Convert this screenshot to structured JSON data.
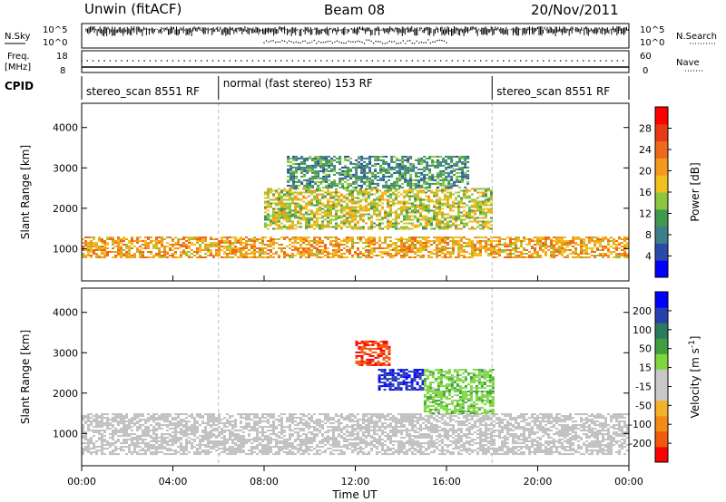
{
  "header": {
    "station": "Unwin (fitACF)",
    "beam": "Beam 08",
    "date": "20/Nov/2011"
  },
  "side_labels": {
    "nsky": "N.Sky",
    "nsearch": "N.Search",
    "freq_line1": "Freq.",
    "freq_line2": "[MHz]",
    "nave": "Nave",
    "cpid": "CPID"
  },
  "noise_panel": {
    "left_ticks": [
      "10^5",
      "10^0"
    ],
    "right_ticks": [
      "10^5",
      "10^0"
    ]
  },
  "freq_panel": {
    "left_ticks": [
      "18",
      "8"
    ],
    "right_ticks": [
      "60",
      "0"
    ]
  },
  "cpid_segments": [
    {
      "label": "stereo_scan 8551 RF",
      "start_h": 0,
      "end_h": 6.0
    },
    {
      "label": "normal (fast stereo) 153 RF",
      "start_h": 6.0,
      "end_h": 18.0
    },
    {
      "label": "stereo_scan 8551 RF",
      "start_h": 18.0,
      "end_h": 24.0
    }
  ],
  "colors": {
    "power_scale": [
      "#0000ff",
      "#2a4aa8",
      "#3c7f8a",
      "#3f9a4d",
      "#8cc63f",
      "#f0c020",
      "#f39a1c",
      "#ee6a1a",
      "#e83a14",
      "#ff0000"
    ],
    "velocity_scale": [
      "#ff0000",
      "#ef5a0d",
      "#f48a16",
      "#f3b22c",
      "#c8c8c8",
      "#c8c8c8",
      "#7fd63f",
      "#3fa03f",
      "#2c7a5a",
      "#2a3fae",
      "#0000ff"
    ],
    "ground_scatter": "#c0c0c0"
  },
  "chart_data": [
    {
      "type": "heatmap",
      "name": "power",
      "ylabel": "Slant Range [km]",
      "y_ticks": [
        "1000",
        "2000",
        "3000",
        "4000"
      ],
      "ylim": [
        200,
        4600
      ],
      "xlim": [
        0,
        24
      ],
      "colorbar": {
        "label": "Power [dB]",
        "ticks": [
          "4",
          "8",
          "12",
          "16",
          "20",
          "24",
          "28"
        ],
        "range": [
          0,
          32
        ]
      },
      "bands": [
        {
          "name": "near_range_main",
          "range_km": [
            800,
            1300
          ],
          "start_h": 0,
          "end_h": 24,
          "level_db": 20
        },
        {
          "name": "mid_range_patch",
          "range_km": [
            1500,
            2500
          ],
          "start_h": 8,
          "end_h": 18,
          "level_db": 16
        },
        {
          "name": "far_range_patch",
          "range_km": [
            2500,
            3300
          ],
          "start_h": 9,
          "end_h": 17,
          "level_db": 10
        }
      ]
    },
    {
      "type": "heatmap",
      "name": "velocity",
      "ylabel": "Slant Range [km]",
      "y_ticks": [
        "1000",
        "2000",
        "3000",
        "4000"
      ],
      "ylim": [
        200,
        4600
      ],
      "xlim": [
        0,
        24
      ],
      "colorbar": {
        "label": "Velocity [m s^-1]",
        "ticks": [
          "200",
          "100",
          "50",
          "15",
          "-15",
          "-50",
          "-100",
          "-200"
        ],
        "range": [
          -250,
          250
        ]
      },
      "bands": [
        {
          "name": "ground_scatter_main",
          "range_km": [
            500,
            1500
          ],
          "start_h": 0,
          "end_h": 24,
          "velocity": 0
        },
        {
          "name": "negative_patch",
          "range_km": [
            2700,
            3300
          ],
          "start_h": 12,
          "end_h": 13.5,
          "velocity": -200
        },
        {
          "name": "positive_patch",
          "range_km": [
            2100,
            2600
          ],
          "start_h": 13,
          "end_h": 15,
          "velocity": 200
        },
        {
          "name": "green_patch",
          "range_km": [
            1500,
            2600
          ],
          "start_h": 15,
          "end_h": 18,
          "velocity": 50
        }
      ]
    }
  ],
  "time_axis": {
    "ticks": [
      "00:00",
      "04:00",
      "08:00",
      "12:00",
      "16:00",
      "20:00",
      "00:00"
    ],
    "label": "Time UT"
  }
}
